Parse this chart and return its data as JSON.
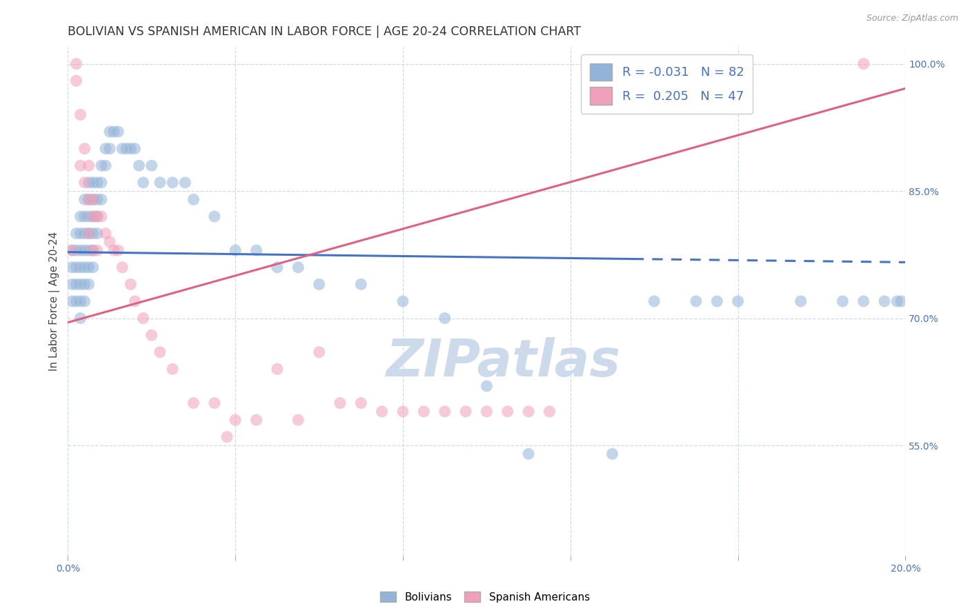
{
  "title": "BOLIVIAN VS SPANISH AMERICAN IN LABOR FORCE | AGE 20-24 CORRELATION CHART",
  "source": "Source: ZipAtlas.com",
  "ylabel": "In Labor Force | Age 20-24",
  "xlim": [
    0.0,
    0.2
  ],
  "ylim": [
    0.42,
    1.02
  ],
  "xtick_positions": [
    0.0,
    0.04,
    0.08,
    0.12,
    0.16,
    0.2
  ],
  "xticklabels": [
    "0.0%",
    "",
    "",
    "",
    "",
    "20.0%"
  ],
  "yticks_right": [
    0.55,
    0.7,
    0.85,
    1.0
  ],
  "ytick_right_labels": [
    "55.0%",
    "70.0%",
    "85.0%",
    "100.0%"
  ],
  "blue_R": -0.031,
  "blue_N": 82,
  "pink_R": 0.205,
  "pink_N": 47,
  "blue_color": "#92b4d8",
  "pink_color": "#f0a0b8",
  "blue_line_color": "#4472c4",
  "pink_line_color": "#e06080",
  "watermark_color": "#ccdaec",
  "legend_label_blue": "Bolivians",
  "legend_label_pink": "Spanish Americans",
  "title_fontsize": 12.5,
  "axis_label_fontsize": 11,
  "tick_fontsize": 10,
  "blue_line_intercept": 0.778,
  "blue_line_slope": -0.06,
  "blue_dashed_from": 0.135,
  "pink_line_intercept": 0.695,
  "pink_line_slope": 1.38,
  "blue_x": [
    0.001,
    0.001,
    0.001,
    0.001,
    0.002,
    0.002,
    0.002,
    0.002,
    0.002,
    0.003,
    0.003,
    0.003,
    0.003,
    0.003,
    0.003,
    0.003,
    0.004,
    0.004,
    0.004,
    0.004,
    0.004,
    0.004,
    0.004,
    0.005,
    0.005,
    0.005,
    0.005,
    0.005,
    0.005,
    0.005,
    0.006,
    0.006,
    0.006,
    0.006,
    0.006,
    0.006,
    0.007,
    0.007,
    0.007,
    0.007,
    0.008,
    0.008,
    0.008,
    0.009,
    0.009,
    0.01,
    0.01,
    0.011,
    0.012,
    0.013,
    0.014,
    0.015,
    0.016,
    0.017,
    0.018,
    0.02,
    0.022,
    0.025,
    0.028,
    0.03,
    0.035,
    0.04,
    0.045,
    0.05,
    0.055,
    0.06,
    0.07,
    0.08,
    0.09,
    0.1,
    0.11,
    0.13,
    0.14,
    0.15,
    0.155,
    0.16,
    0.175,
    0.185,
    0.19,
    0.195,
    0.198,
    0.199
  ],
  "blue_y": [
    0.78,
    0.76,
    0.74,
    0.72,
    0.8,
    0.78,
    0.76,
    0.74,
    0.72,
    0.82,
    0.8,
    0.78,
    0.76,
    0.74,
    0.72,
    0.7,
    0.84,
    0.82,
    0.8,
    0.78,
    0.76,
    0.74,
    0.72,
    0.86,
    0.84,
    0.82,
    0.8,
    0.78,
    0.76,
    0.74,
    0.86,
    0.84,
    0.82,
    0.8,
    0.78,
    0.76,
    0.86,
    0.84,
    0.82,
    0.8,
    0.88,
    0.86,
    0.84,
    0.9,
    0.88,
    0.92,
    0.9,
    0.92,
    0.92,
    0.9,
    0.9,
    0.9,
    0.9,
    0.88,
    0.86,
    0.88,
    0.86,
    0.86,
    0.86,
    0.84,
    0.82,
    0.78,
    0.78,
    0.76,
    0.76,
    0.74,
    0.74,
    0.72,
    0.7,
    0.62,
    0.54,
    0.54,
    0.72,
    0.72,
    0.72,
    0.72,
    0.72,
    0.72,
    0.72,
    0.72,
    0.72,
    0.72
  ],
  "pink_x": [
    0.001,
    0.002,
    0.002,
    0.003,
    0.003,
    0.004,
    0.004,
    0.005,
    0.005,
    0.005,
    0.006,
    0.006,
    0.006,
    0.007,
    0.007,
    0.008,
    0.009,
    0.01,
    0.011,
    0.012,
    0.013,
    0.015,
    0.016,
    0.018,
    0.02,
    0.022,
    0.025,
    0.03,
    0.035,
    0.038,
    0.04,
    0.045,
    0.05,
    0.055,
    0.06,
    0.065,
    0.07,
    0.075,
    0.08,
    0.085,
    0.09,
    0.095,
    0.1,
    0.105,
    0.11,
    0.115,
    0.19
  ],
  "pink_y": [
    0.78,
    0.98,
    1.0,
    0.94,
    0.88,
    0.9,
    0.86,
    0.88,
    0.84,
    0.8,
    0.84,
    0.82,
    0.78,
    0.82,
    0.78,
    0.82,
    0.8,
    0.79,
    0.78,
    0.78,
    0.76,
    0.74,
    0.72,
    0.7,
    0.68,
    0.66,
    0.64,
    0.6,
    0.6,
    0.56,
    0.58,
    0.58,
    0.64,
    0.58,
    0.66,
    0.6,
    0.6,
    0.59,
    0.59,
    0.59,
    0.59,
    0.59,
    0.59,
    0.59,
    0.59,
    0.59,
    1.0
  ]
}
